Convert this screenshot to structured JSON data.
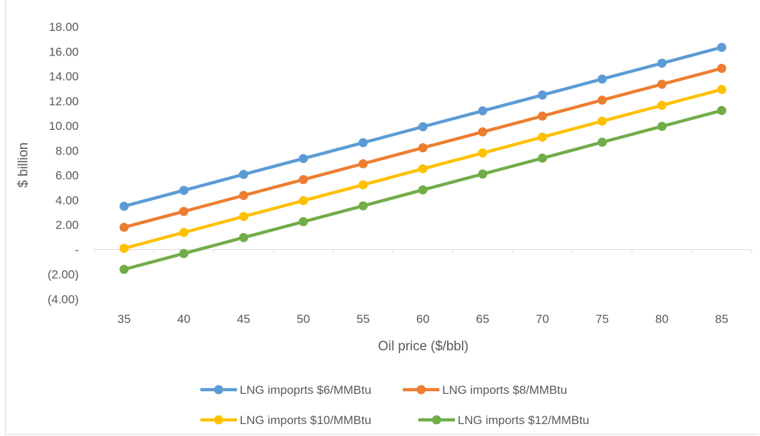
{
  "chart_data": {
    "type": "line",
    "title": "",
    "xlabel": "Oil price ($/bbl)",
    "ylabel": "$ billion",
    "x": [
      35,
      40,
      45,
      50,
      55,
      60,
      65,
      70,
      75,
      80,
      85
    ],
    "x_tick_labels": [
      "35",
      "40",
      "45",
      "50",
      "55",
      "60",
      "65",
      "70",
      "75",
      "80",
      "85"
    ],
    "ylim": [
      -4,
      18
    ],
    "y_ticks": [
      18,
      16,
      14,
      12,
      10,
      8,
      6,
      4,
      2,
      0,
      -2,
      -4
    ],
    "y_tick_labels": [
      "18.00",
      "16.00",
      "14.00",
      "12.00",
      "10.00",
      "8.00",
      "6.00",
      "4.00",
      "2.00",
      "-",
      "(2.00)",
      "(4.00)"
    ],
    "grid": false,
    "legend_position": "bottom",
    "series": [
      {
        "name": "LNG impoprts $6/MMBtu",
        "color": "#5b9bd5",
        "values": [
          3.5,
          4.78,
          6.07,
          7.35,
          8.63,
          9.92,
          11.2,
          12.48,
          13.77,
          15.05,
          16.33
        ]
      },
      {
        "name": "LNG imports $8/MMBtu",
        "color": "#ed7d31",
        "values": [
          1.8,
          3.08,
          4.37,
          5.65,
          6.93,
          8.22,
          9.5,
          10.78,
          12.07,
          13.35,
          14.63
        ]
      },
      {
        "name": "LNG imports $10/MMBtu",
        "color": "#ffc000",
        "values": [
          0.1,
          1.38,
          2.67,
          3.95,
          5.23,
          6.52,
          7.8,
          9.08,
          10.37,
          11.65,
          12.93
        ]
      },
      {
        "name": "LNG imports $12/MMBtu",
        "color": "#70ad47",
        "values": [
          -1.6,
          -0.32,
          0.97,
          2.25,
          3.53,
          4.82,
          6.1,
          7.38,
          8.67,
          9.95,
          11.23
        ]
      }
    ]
  }
}
